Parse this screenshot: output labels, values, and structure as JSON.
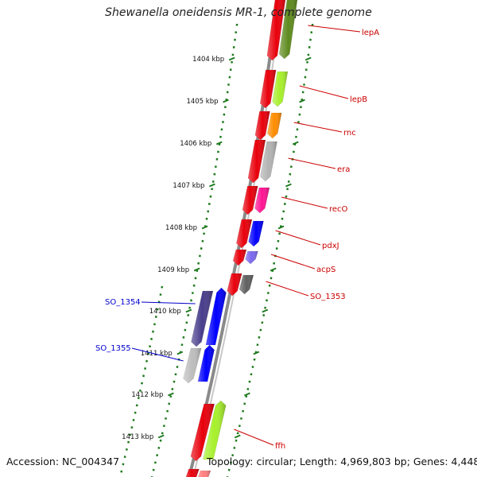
{
  "title": "Shewanella oneidensis MR-1, complete genome",
  "footer": {
    "accession": "Accession: NC_004347",
    "topology": "Topology: circular; Length: 4,969,803 bp; Genes: 4,448"
  },
  "kbp_ticks": [
    "1404 kbp",
    "1405 kbp",
    "1406 kbp",
    "1407 kbp",
    "1408 kbp",
    "1409 kbp",
    "1410 kbp",
    "1411 kbp",
    "1412 kbp",
    "1413 kbp"
  ],
  "genes_right": [
    {
      "name": "lepA",
      "inner": "#e8000b",
      "outer": "#5e8a1e"
    },
    {
      "name": "lepB",
      "inner": "#e8000b",
      "outer": "#a7f02c"
    },
    {
      "name": "rnc",
      "inner": "#e8000b",
      "outer": "#ff8c00"
    },
    {
      "name": "era",
      "inner": "#e8000b",
      "outer": "#b3b3b3"
    },
    {
      "name": "recO",
      "inner": "#e8000b",
      "outer": "#ff1493"
    },
    {
      "name": "pdxJ",
      "inner": "#e8000b",
      "outer": "#0000ff"
    },
    {
      "name": "acpS",
      "inner": "#e8000b",
      "outer": "#7b68ee"
    },
    {
      "name": "SO_1353",
      "inner": "#e8000b",
      "outer": "#606060"
    },
    {
      "name": "ffh",
      "inner": "#e8000b",
      "outer": "#a7f02c"
    }
  ],
  "genes_left": [
    {
      "name": "SO_1354",
      "inner": "#483d8b",
      "outer": "#0000ff"
    },
    {
      "name": "SO_1355",
      "inner": "#bdbdbd",
      "outer": "#0000ff"
    }
  ],
  "colors": {
    "label_right": "#cc0000",
    "label_left": "#0000cc",
    "tick_green": "#1e7a1e",
    "backbone": "#7a7a7a"
  }
}
